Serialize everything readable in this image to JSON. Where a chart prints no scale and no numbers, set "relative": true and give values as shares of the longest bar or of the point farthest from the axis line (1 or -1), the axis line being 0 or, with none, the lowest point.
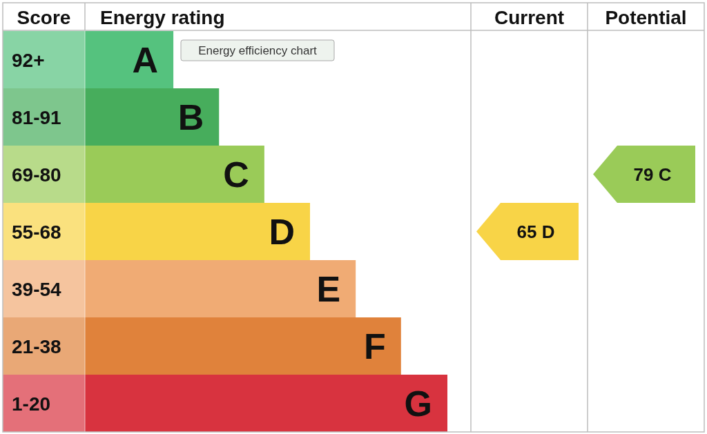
{
  "chart_data": {
    "type": "bar",
    "orientation": "horizontal",
    "relative": true,
    "xlabel": "Energy rating",
    "ylabel": "Score",
    "categories": [
      "A",
      "B",
      "C",
      "D",
      "E",
      "F",
      "G"
    ],
    "values": [
      0.244,
      0.37,
      0.495,
      0.621,
      0.747,
      0.872,
      1
    ],
    "colors": [
      "#55c27e",
      "#47ad5c",
      "#9acb58",
      "#f8d447",
      "#f0ab74",
      "#e0823b",
      "#d8333f"
    ],
    "annotations": [
      "Current",
      "Potential",
      "92+",
      "81-91",
      "69-80",
      "55-68",
      "39-54",
      "21-38",
      "1-20",
      "65 D",
      "79 C",
      "Energy efficiency chart"
    ]
  }
}
